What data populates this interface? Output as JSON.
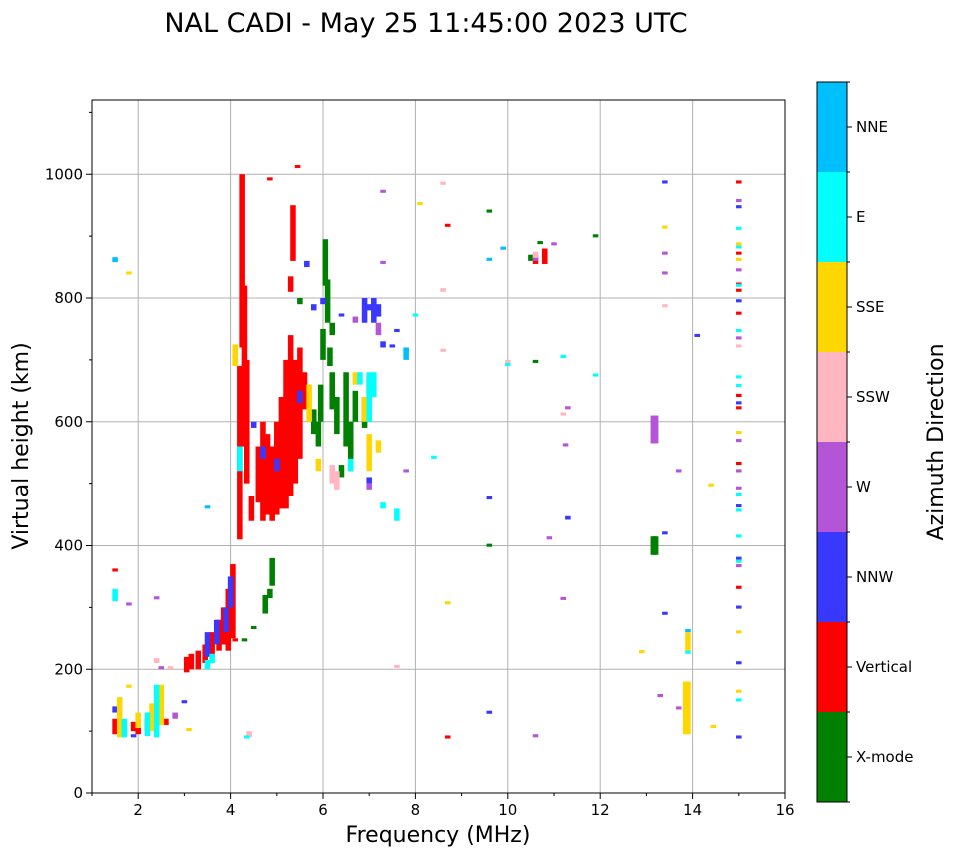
{
  "chart_data": {
    "type": "scatter",
    "title": "NAL CADI - May 25 11:45:00 2023 UTC",
    "xlabel": "Frequency (MHz)",
    "ylabel": "Virtual height (km)",
    "xlim": [
      1,
      16
    ],
    "ylim": [
      0,
      1120
    ],
    "xticks": [
      2,
      4,
      6,
      8,
      10,
      12,
      14,
      16
    ],
    "yticks": [
      0,
      200,
      400,
      600,
      800,
      1000
    ],
    "grid": true,
    "colorbar": {
      "label": "Azimuth Direction",
      "categories": [
        "X-mode",
        "Vertical",
        "NNW",
        "W",
        "SSW",
        "SSE",
        "E",
        "NNE"
      ],
      "colors": [
        "#008000",
        "#ff0000",
        "#3838ff",
        "#b455d8",
        "#ffb6c1",
        "#ffd700",
        "#00ffff",
        "#00bfff"
      ]
    },
    "point_format": "[frequency_MHz, height_start_km, height_end_km]",
    "series": [
      {
        "name": "X-mode",
        "color": "#008000",
        "points": [
          [
            4.9,
            335,
            380
          ],
          [
            4.75,
            290,
            320
          ],
          [
            4.85,
            315,
            330
          ],
          [
            4.3,
            245,
            250
          ],
          [
            4.5,
            265,
            268
          ],
          [
            6.0,
            700,
            750
          ],
          [
            6.05,
            820,
            895
          ],
          [
            6.1,
            760,
            830
          ],
          [
            5.95,
            600,
            660
          ],
          [
            6.2,
            620,
            680
          ],
          [
            6.3,
            580,
            640
          ],
          [
            6.5,
            560,
            680
          ],
          [
            6.6,
            520,
            600
          ],
          [
            6.4,
            510,
            530
          ],
          [
            6.15,
            690,
            720
          ],
          [
            5.9,
            560,
            600
          ],
          [
            5.8,
            580,
            620
          ],
          [
            6.7,
            600,
            650
          ],
          [
            6.9,
            590,
            640
          ],
          [
            7.0,
            640,
            670
          ],
          [
            6.2,
            740,
            760
          ],
          [
            5.5,
            790,
            800
          ],
          [
            10.6,
            695,
            698
          ],
          [
            9.6,
            938,
            941
          ],
          [
            11.9,
            898,
            901
          ],
          [
            9.6,
            398,
            400
          ],
          [
            10.7,
            887,
            892
          ],
          [
            13.2,
            385,
            415
          ],
          [
            13.15,
            385,
            415
          ],
          [
            10.5,
            860,
            870
          ]
        ]
      },
      {
        "name": "Vertical",
        "color": "#ff0000",
        "points": [
          [
            4.2,
            410,
            690
          ],
          [
            4.25,
            720,
            1000
          ],
          [
            4.3,
            560,
            820
          ],
          [
            4.35,
            500,
            700
          ],
          [
            4.45,
            440,
            480
          ],
          [
            4.6,
            470,
            560
          ],
          [
            4.7,
            440,
            600
          ],
          [
            4.8,
            450,
            580
          ],
          [
            4.9,
            440,
            560
          ],
          [
            5.0,
            450,
            600
          ],
          [
            5.1,
            460,
            640
          ],
          [
            5.2,
            460,
            700
          ],
          [
            5.3,
            480,
            740
          ],
          [
            5.4,
            500,
            700
          ],
          [
            5.5,
            540,
            720
          ],
          [
            5.6,
            620,
            680
          ],
          [
            5.35,
            860,
            950
          ],
          [
            5.3,
            810,
            835
          ],
          [
            5.45,
            1010,
            1012
          ],
          [
            4.85,
            990,
            992
          ],
          [
            4.05,
            250,
            370
          ],
          [
            3.95,
            230,
            330
          ],
          [
            3.85,
            240,
            300
          ],
          [
            3.75,
            230,
            280
          ],
          [
            3.6,
            220,
            260
          ],
          [
            3.45,
            210,
            240
          ],
          [
            3.3,
            200,
            230
          ],
          [
            3.15,
            200,
            225
          ],
          [
            3.05,
            195,
            220
          ],
          [
            2.0,
            95,
            110
          ],
          [
            1.5,
            95,
            120
          ],
          [
            1.7,
            95,
            105
          ],
          [
            1.9,
            100,
            115
          ],
          [
            2.2,
            100,
            120
          ],
          [
            2.4,
            105,
            115
          ],
          [
            2.6,
            110,
            120
          ],
          [
            8.7,
            915,
            918
          ],
          [
            8.7,
            88,
            91
          ],
          [
            10.8,
            855,
            880
          ],
          [
            10.6,
            855,
            870
          ],
          [
            15.0,
            985,
            988
          ],
          [
            15,
            870,
            873
          ],
          [
            15,
            820,
            823
          ],
          [
            15,
            810,
            813
          ],
          [
            15,
            773,
            776
          ],
          [
            15,
            640,
            643
          ],
          [
            15,
            620,
            623
          ],
          [
            15,
            530,
            533
          ],
          [
            15,
            330,
            333
          ],
          [
            1.5,
            358,
            362
          ],
          [
            4.1,
            245,
            250
          ]
        ]
      },
      {
        "name": "NNW",
        "color": "#3838ff",
        "points": [
          [
            3.5,
            220,
            260
          ],
          [
            3.7,
            240,
            280
          ],
          [
            3.9,
            260,
            300
          ],
          [
            4.0,
            300,
            350
          ],
          [
            5.65,
            850,
            860
          ],
          [
            5.8,
            780,
            790
          ],
          [
            6.0,
            790,
            800
          ],
          [
            6.9,
            760,
            800
          ],
          [
            7.0,
            780,
            790
          ],
          [
            7.1,
            760,
            800
          ],
          [
            7.2,
            770,
            790
          ],
          [
            7.3,
            720,
            730
          ],
          [
            7.5,
            720,
            725
          ],
          [
            7.6,
            745,
            748
          ],
          [
            6.4,
            770,
            775
          ],
          [
            5.5,
            630,
            650
          ],
          [
            4.7,
            540,
            560
          ],
          [
            5.0,
            520,
            540
          ],
          [
            4.5,
            590,
            600
          ],
          [
            11.3,
            442,
            448
          ],
          [
            9.6,
            475,
            478
          ],
          [
            13.4,
            985,
            988
          ],
          [
            13.4,
            418,
            421
          ],
          [
            13.4,
            288,
            291
          ],
          [
            9.6,
            128,
            131
          ],
          [
            15,
            945,
            948
          ],
          [
            15,
            793,
            796
          ],
          [
            15,
            628,
            631
          ],
          [
            15,
            462,
            465
          ],
          [
            15,
            377,
            380
          ],
          [
            15,
            298,
            301
          ],
          [
            15,
            208,
            211
          ],
          [
            15,
            88,
            91
          ],
          [
            14.1,
            737,
            740
          ],
          [
            7.0,
            500,
            510
          ],
          [
            1.5,
            130,
            140
          ],
          [
            3.0,
            145,
            150
          ],
          [
            1.9,
            90,
            95
          ]
        ]
      },
      {
        "name": "W",
        "color": "#b455d8",
        "points": [
          [
            13.2,
            565,
            610
          ],
          [
            13.15,
            565,
            610
          ],
          [
            6.7,
            760,
            770
          ],
          [
            7.2,
            740,
            760
          ],
          [
            7.0,
            490,
            500
          ],
          [
            11.3,
            620,
            625
          ],
          [
            11.25,
            560,
            565
          ],
          [
            11.0,
            885,
            890
          ],
          [
            10.6,
            860,
            870
          ],
          [
            10.9,
            410,
            413
          ],
          [
            11.2,
            312,
            315
          ],
          [
            13.4,
            870,
            873
          ],
          [
            13.4,
            838,
            841
          ],
          [
            13.7,
            518,
            521
          ],
          [
            13.3,
            155,
            158
          ],
          [
            13.7,
            135,
            138
          ],
          [
            15,
            955,
            958
          ],
          [
            15,
            843,
            846
          ],
          [
            15,
            733,
            736
          ],
          [
            15,
            567,
            570
          ],
          [
            15,
            518,
            521
          ],
          [
            15,
            490,
            493
          ],
          [
            15,
            365,
            368
          ],
          [
            7.8,
            518,
            520
          ],
          [
            10.6,
            90,
            93
          ],
          [
            7.3,
            855,
            858
          ],
          [
            7.3,
            970,
            972
          ],
          [
            2.4,
            313,
            316
          ],
          [
            1.8,
            303,
            306
          ],
          [
            2.5,
            200,
            205
          ],
          [
            2.8,
            120,
            130
          ]
        ]
      },
      {
        "name": "SSW",
        "color": "#ffb6c1",
        "points": [
          [
            8.6,
            983,
            985
          ],
          [
            8.6,
            810,
            816
          ],
          [
            8.6,
            713,
            716
          ],
          [
            13.4,
            785,
            788
          ],
          [
            10.0,
            690,
            700
          ],
          [
            10.6,
            865,
            875
          ],
          [
            6.3,
            490,
            520
          ],
          [
            6.2,
            500,
            530
          ],
          [
            4.4,
            90,
            100
          ],
          [
            2.4,
            210,
            218
          ],
          [
            7.6,
            202,
            204
          ],
          [
            15,
            720,
            723
          ],
          [
            11.2,
            610,
            613
          ],
          [
            2.7,
            200,
            205
          ]
        ]
      },
      {
        "name": "SSE",
        "color": "#ffd700",
        "points": [
          [
            13.9,
            95,
            180
          ],
          [
            13.85,
            95,
            180
          ],
          [
            13.9,
            230,
            260
          ],
          [
            12.9,
            226,
            228
          ],
          [
            14.4,
            495,
            497
          ],
          [
            14.45,
            105,
            107
          ],
          [
            8.7,
            305,
            307
          ],
          [
            8.1,
            950,
            952
          ],
          [
            13.4,
            912,
            915
          ],
          [
            15,
            885,
            888
          ],
          [
            15,
            860,
            863
          ],
          [
            15,
            580,
            583
          ],
          [
            15,
            258,
            261
          ],
          [
            15,
            162,
            164
          ],
          [
            6.7,
            660,
            680
          ],
          [
            6.9,
            600,
            640
          ],
          [
            7.0,
            520,
            580
          ],
          [
            7.2,
            550,
            570
          ],
          [
            5.7,
            600,
            660
          ],
          [
            5.9,
            520,
            540
          ],
          [
            3.1,
            100,
            105
          ],
          [
            2.0,
            105,
            130
          ],
          [
            2.3,
            100,
            145
          ],
          [
            2.5,
            110,
            175
          ],
          [
            1.6,
            90,
            155
          ],
          [
            1.8,
            838,
            840
          ],
          [
            1.8,
            170,
            175
          ],
          [
            4.1,
            690,
            725
          ]
        ]
      },
      {
        "name": "E",
        "color": "#00ffff",
        "points": [
          [
            7.6,
            440,
            460
          ],
          [
            7.0,
            600,
            680
          ],
          [
            7.1,
            640,
            680
          ],
          [
            6.8,
            660,
            680
          ],
          [
            7.8,
            710,
            720
          ],
          [
            8.0,
            770,
            773
          ],
          [
            8.4,
            540,
            545
          ],
          [
            11.2,
            703,
            705
          ],
          [
            11.9,
            673,
            675
          ],
          [
            10.0,
            690,
            695
          ],
          [
            13.9,
            225,
            230
          ],
          [
            15,
            910,
            913
          ],
          [
            15,
            880,
            883
          ],
          [
            15,
            818,
            821
          ],
          [
            15,
            745,
            748
          ],
          [
            15,
            670,
            673
          ],
          [
            15,
            656,
            659
          ],
          [
            15,
            480,
            483
          ],
          [
            15,
            455,
            458
          ],
          [
            15,
            413,
            416
          ],
          [
            15,
            372,
            375
          ],
          [
            15,
            148,
            151
          ],
          [
            1.5,
            310,
            330
          ],
          [
            2.4,
            90,
            175
          ],
          [
            2.2,
            92,
            130
          ],
          [
            1.7,
            90,
            120
          ],
          [
            4.35,
            88,
            92
          ],
          [
            3.5,
            200,
            215
          ],
          [
            3.6,
            210,
            225
          ],
          [
            4.2,
            520,
            560
          ],
          [
            6.6,
            520,
            540
          ],
          [
            7.3,
            460,
            470
          ]
        ]
      },
      {
        "name": "NNE",
        "color": "#00bfff",
        "points": [
          [
            7.8,
            700,
            720
          ],
          [
            9.6,
            860,
            865
          ],
          [
            9.9,
            878,
            880
          ],
          [
            3.5,
            460,
            464
          ],
          [
            1.5,
            858,
            866
          ],
          [
            13.9,
            260,
            265
          ]
        ]
      }
    ]
  }
}
